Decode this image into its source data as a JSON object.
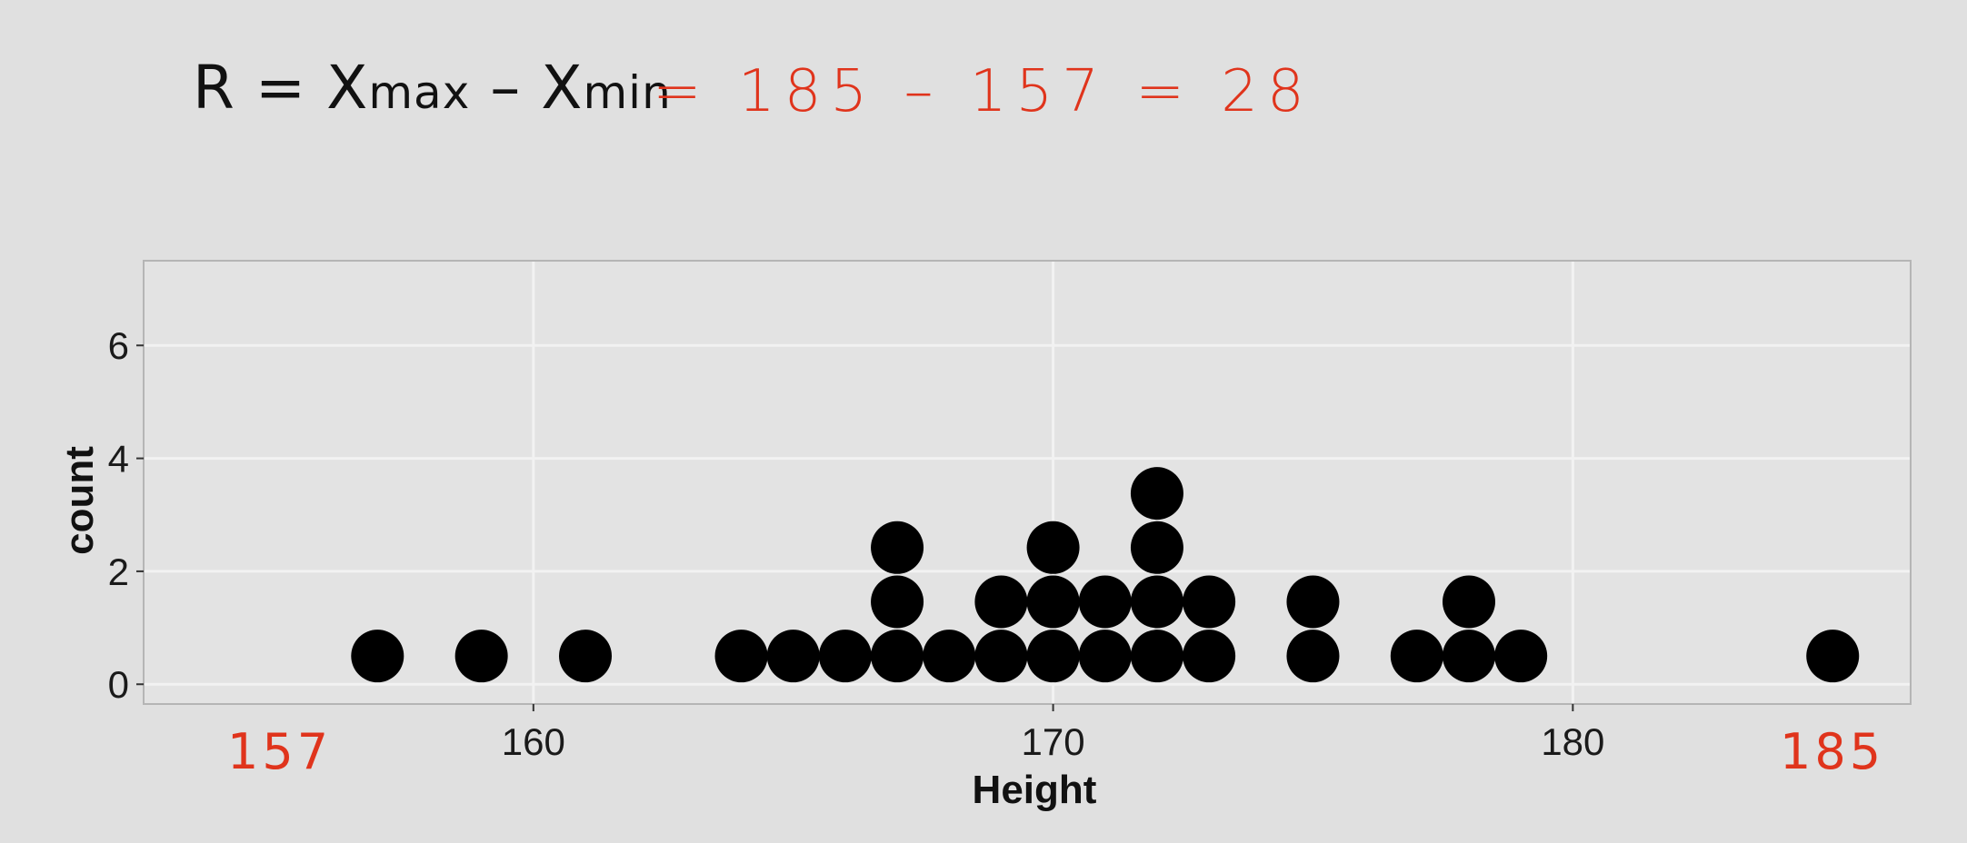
{
  "formula": {
    "r": "R",
    "equals": " = ",
    "x1": "X",
    "max_sub": "max",
    "minus": " – ",
    "x2": "X",
    "min_sub": "min"
  },
  "annotations": {
    "equation": "= 185 – 157 = 28",
    "min_label": "157",
    "max_label": "185",
    "color": "#e0341c"
  },
  "chart_data": {
    "type": "scatter",
    "style": "dotplot",
    "xlabel": "Height",
    "ylabel": "count",
    "xlim": [
      152.5,
      186.5
    ],
    "ylim": [
      -0.35,
      7.5
    ],
    "x_ticks": [
      160,
      170,
      180
    ],
    "y_ticks": [
      0,
      2,
      4,
      6
    ],
    "grid": true,
    "dot_color": "#000000",
    "panel_color": "#e3e3e3",
    "grid_color": "#f2f2f2",
    "points": [
      {
        "x": 157,
        "count": 1
      },
      {
        "x": 159,
        "count": 1
      },
      {
        "x": 161,
        "count": 1
      },
      {
        "x": 164,
        "count": 1
      },
      {
        "x": 165,
        "count": 1
      },
      {
        "x": 166,
        "count": 1
      },
      {
        "x": 167,
        "count": 3
      },
      {
        "x": 168,
        "count": 1
      },
      {
        "x": 169,
        "count": 2
      },
      {
        "x": 170,
        "count": 3
      },
      {
        "x": 171,
        "count": 2
      },
      {
        "x": 172,
        "count": 4
      },
      {
        "x": 173,
        "count": 2
      },
      {
        "x": 175,
        "count": 2
      },
      {
        "x": 177,
        "count": 1
      },
      {
        "x": 178,
        "count": 2
      },
      {
        "x": 179,
        "count": 1
      },
      {
        "x": 185,
        "count": 1
      }
    ]
  }
}
